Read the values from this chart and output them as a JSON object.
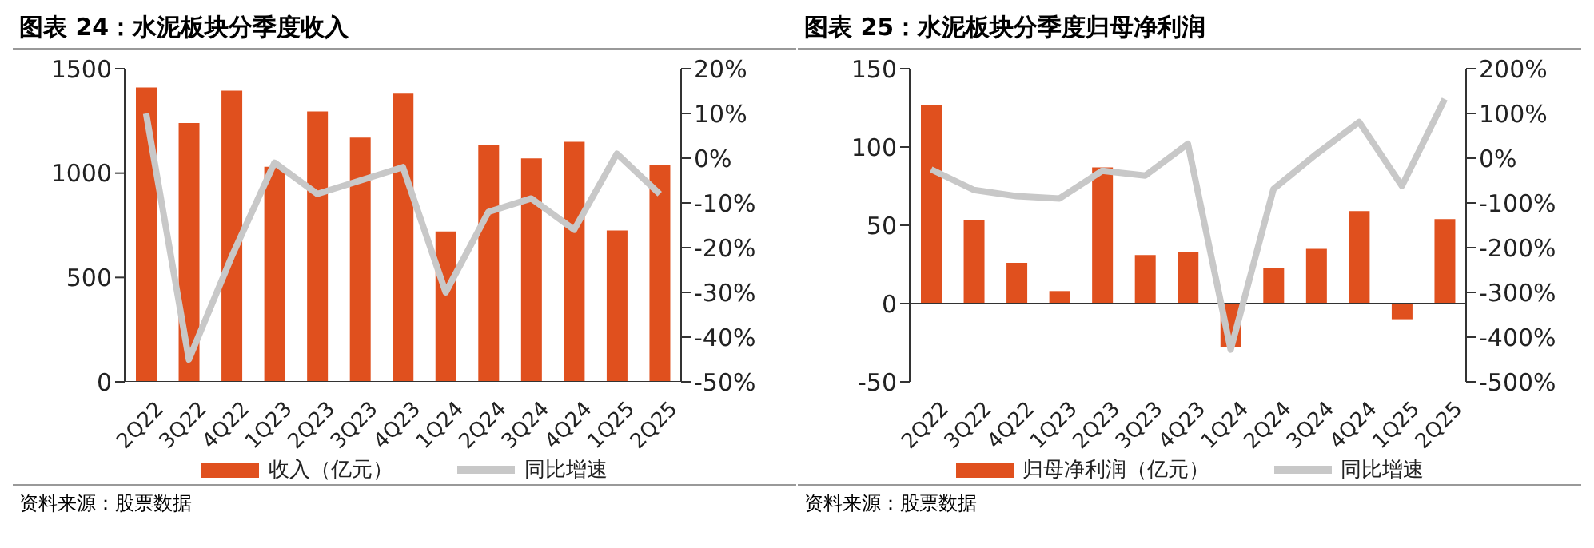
{
  "chart_data": [
    {
      "type": "bar",
      "title": "图表 24：水泥板块分季度收入",
      "categories": [
        "2Q22",
        "3Q22",
        "4Q22",
        "1Q23",
        "2Q23",
        "3Q23",
        "4Q23",
        "1Q24",
        "2Q24",
        "3Q24",
        "4Q24",
        "1Q25",
        "2Q25"
      ],
      "series": [
        {
          "name": "收入（亿元）",
          "color": "#e0501e",
          "values": [
            1410,
            1240,
            1395,
            1030,
            1295,
            1170,
            1380,
            720,
            1135,
            1070,
            1150,
            725,
            1040
          ]
        },
        {
          "name": "同比增速",
          "type": "line",
          "axis": "y2",
          "color": "#c8c8c8",
          "values": [
            10,
            -45,
            -22,
            -1,
            -8,
            -5,
            -2,
            -30,
            -12,
            -9,
            -16,
            1,
            -8
          ]
        }
      ],
      "ylim": [
        0,
        1500
      ],
      "yticks": [
        0,
        500,
        1000,
        1500
      ],
      "y2lim": [
        -50,
        20
      ],
      "y2ticks": [
        {
          "value": -50,
          "label": "-50%"
        },
        {
          "value": -40,
          "label": "-40%"
        },
        {
          "value": -30,
          "label": "-30%"
        },
        {
          "value": -20,
          "label": "-20%"
        },
        {
          "value": -10,
          "label": "-10%"
        },
        {
          "value": 0,
          "label": "0%"
        },
        {
          "value": 10,
          "label": "10%"
        },
        {
          "value": 20,
          "label": "20%"
        }
      ],
      "legend": "bottom",
      "marker": "none",
      "annotations": [
        "资料来源：股票数据"
      ]
    },
    {
      "type": "bar",
      "title": "图表 25：水泥板块分季度归母净利润",
      "categories": [
        "2Q22",
        "3Q22",
        "4Q22",
        "1Q23",
        "2Q23",
        "3Q23",
        "4Q23",
        "1Q24",
        "2Q24",
        "3Q24",
        "4Q24",
        "1Q25",
        "2Q25"
      ],
      "series": [
        {
          "name": "归母净利润（亿元）",
          "color": "#e0501e",
          "values": [
            127,
            53,
            26,
            8,
            87,
            31,
            33,
            -28,
            23,
            35,
            59,
            -10,
            54
          ]
        },
        {
          "name": "同比增速",
          "type": "line",
          "axis": "y2",
          "color": "#c8c8c8",
          "values": [
            -25,
            -71,
            -85,
            -90,
            -28,
            -39,
            32,
            -428,
            -69,
            9,
            81,
            -62,
            132
          ]
        }
      ],
      "ylim": [
        -50,
        150
      ],
      "yticks": [
        -50,
        0,
        50,
        100,
        150
      ],
      "y2lim": [
        -500,
        200
      ],
      "y2ticks": [
        {
          "value": -500,
          "label": "-500%"
        },
        {
          "value": -400,
          "label": "-400%"
        },
        {
          "value": -300,
          "label": "-300%"
        },
        {
          "value": -200,
          "label": "-200%"
        },
        {
          "value": -100,
          "label": "-100%"
        },
        {
          "value": 0,
          "label": "0%"
        },
        {
          "value": 100,
          "label": "100%"
        },
        {
          "value": 200,
          "label": "200%"
        }
      ],
      "legend": "bottom",
      "marker": "none",
      "annotations": [
        "资料来源：股票数据"
      ]
    }
  ]
}
